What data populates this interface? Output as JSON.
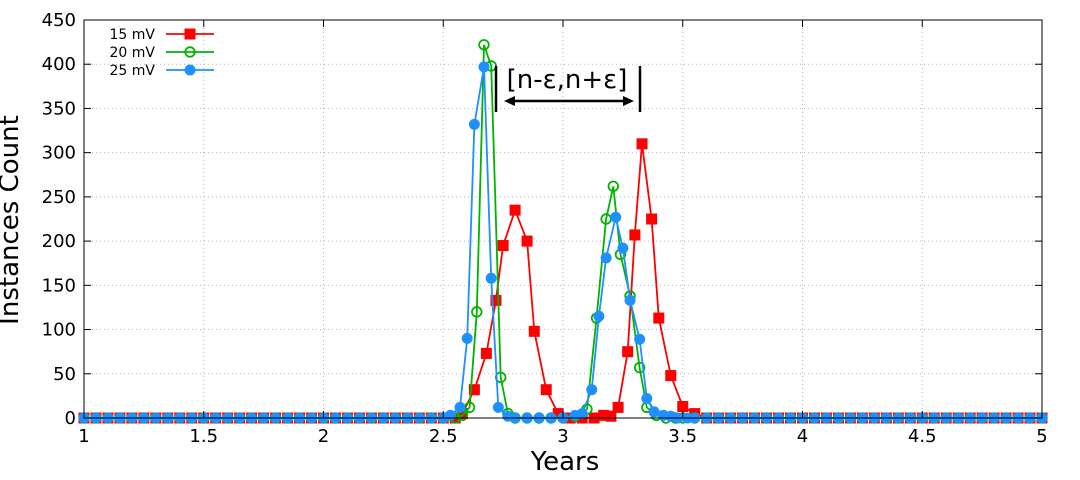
{
  "chart_data": {
    "type": "line",
    "xlabel": "Years",
    "ylabel": "Instances Count",
    "xlim": [
      1,
      5
    ],
    "ylim": [
      0,
      450
    ],
    "x_ticks": [
      "1",
      "1.5",
      "2",
      "2.5",
      "3",
      "3.5",
      "4",
      "4.5",
      "5"
    ],
    "y_ticks": [
      "0",
      "50",
      "100",
      "150",
      "200",
      "250",
      "300",
      "350",
      "400",
      "450"
    ],
    "grid": true,
    "legend_position": "top-left",
    "annotation": "[n-ε,n+ε]",
    "annotation_span": [
      2.73,
      3.28
    ],
    "series": [
      {
        "name": "15 mV",
        "color": "#ff0000",
        "marker": "square-filled",
        "x": [
          1,
          1.05,
          1.1,
          1.15,
          1.2,
          1.25,
          1.3,
          1.35,
          1.4,
          1.45,
          1.5,
          1.55,
          1.6,
          1.65,
          1.7,
          1.75,
          1.8,
          1.85,
          1.9,
          1.95,
          2,
          2.05,
          2.1,
          2.15,
          2.2,
          2.25,
          2.3,
          2.35,
          2.4,
          2.45,
          2.5,
          2.55,
          2.58,
          2.63,
          2.68,
          2.72,
          2.75,
          2.8,
          2.85,
          2.88,
          2.93,
          2.98,
          3.03,
          3.08,
          3.13,
          3.17,
          3.2,
          3.23,
          3.27,
          3.3,
          3.33,
          3.37,
          3.4,
          3.45,
          3.5,
          3.55,
          3.6,
          3.65,
          3.7,
          3.75,
          3.8,
          3.85,
          3.9,
          3.95,
          4,
          4.05,
          4.1,
          4.15,
          4.2,
          4.25,
          4.3,
          4.35,
          4.4,
          4.45,
          4.5,
          4.55,
          4.6,
          4.65,
          4.7,
          4.75,
          4.8,
          4.85,
          4.9,
          4.95,
          5
        ],
        "y": [
          0,
          0,
          0,
          0,
          0,
          0,
          0,
          0,
          0,
          0,
          0,
          0,
          0,
          0,
          0,
          0,
          0,
          0,
          0,
          0,
          0,
          0,
          0,
          0,
          0,
          0,
          0,
          0,
          0,
          0,
          0,
          0,
          5,
          32,
          73,
          133,
          195,
          235,
          200,
          98,
          32,
          5,
          0,
          0,
          0,
          3,
          2,
          12,
          75,
          207,
          310,
          225,
          113,
          48,
          13,
          5,
          0,
          0,
          0,
          0,
          0,
          0,
          0,
          0,
          0,
          0,
          0,
          0,
          0,
          0,
          0,
          0,
          0,
          0,
          0,
          0,
          0,
          0,
          0,
          0,
          0,
          0,
          0,
          0,
          0
        ]
      },
      {
        "name": "20 mV",
        "color": "#00b400",
        "marker": "circle-open",
        "x": [
          1,
          1.05,
          1.1,
          1.15,
          1.2,
          1.25,
          1.3,
          1.35,
          1.4,
          1.45,
          1.5,
          1.55,
          1.6,
          1.65,
          1.7,
          1.75,
          1.8,
          1.85,
          1.9,
          1.95,
          2,
          2.05,
          2.1,
          2.15,
          2.2,
          2.25,
          2.3,
          2.35,
          2.4,
          2.45,
          2.5,
          2.55,
          2.58,
          2.61,
          2.64,
          2.67,
          2.7,
          2.74,
          2.77,
          2.8,
          2.85,
          2.9,
          2.95,
          3,
          3.05,
          3.1,
          3.14,
          3.18,
          3.21,
          3.24,
          3.28,
          3.32,
          3.35,
          3.39,
          3.43,
          3.47,
          3.5,
          3.55,
          3.6,
          3.65,
          3.7,
          3.75,
          3.8,
          3.85,
          3.9,
          3.95,
          4,
          4.05,
          4.1,
          4.15,
          4.2,
          4.25,
          4.3,
          4.35,
          4.4,
          4.45,
          4.5,
          4.55,
          4.6,
          4.65,
          4.7,
          4.75,
          4.8,
          4.85,
          4.9,
          4.95,
          5
        ],
        "y": [
          0,
          0,
          0,
          0,
          0,
          0,
          0,
          0,
          0,
          0,
          0,
          0,
          0,
          0,
          0,
          0,
          0,
          0,
          0,
          0,
          0,
          0,
          0,
          0,
          0,
          0,
          0,
          0,
          0,
          0,
          0,
          0,
          3,
          12,
          120,
          422,
          398,
          46,
          5,
          0,
          0,
          0,
          0,
          0,
          2,
          10,
          113,
          225,
          262,
          185,
          138,
          57,
          12,
          3,
          0,
          0,
          0,
          0,
          0,
          0,
          0,
          0,
          0,
          0,
          0,
          0,
          0,
          0,
          0,
          0,
          0,
          0,
          0,
          0,
          0,
          0,
          0,
          0,
          0,
          0,
          0,
          0,
          0,
          0,
          0,
          0,
          0
        ]
      },
      {
        "name": "25 mV",
        "color": "#1e90ff",
        "marker": "circle-filled",
        "x": [
          1,
          1.05,
          1.1,
          1.15,
          1.2,
          1.25,
          1.3,
          1.35,
          1.4,
          1.45,
          1.5,
          1.55,
          1.6,
          1.65,
          1.7,
          1.75,
          1.8,
          1.85,
          1.9,
          1.95,
          2,
          2.05,
          2.1,
          2.15,
          2.2,
          2.25,
          2.3,
          2.35,
          2.4,
          2.45,
          2.5,
          2.53,
          2.57,
          2.6,
          2.63,
          2.67,
          2.7,
          2.73,
          2.77,
          2.8,
          2.85,
          2.9,
          2.95,
          3,
          3.05,
          3.08,
          3.12,
          3.15,
          3.18,
          3.22,
          3.25,
          3.28,
          3.32,
          3.35,
          3.38,
          3.42,
          3.45,
          3.48,
          3.52,
          3.55,
          3.6,
          3.65,
          3.7,
          3.75,
          3.8,
          3.85,
          3.9,
          3.95,
          4,
          4.05,
          4.1,
          4.15,
          4.2,
          4.25,
          4.3,
          4.35,
          4.4,
          4.45,
          4.5,
          4.55,
          4.6,
          4.65,
          4.7,
          4.75,
          4.8,
          4.85,
          4.9,
          4.95,
          5
        ],
        "y": [
          0,
          0,
          0,
          0,
          0,
          0,
          0,
          0,
          0,
          0,
          0,
          0,
          0,
          0,
          0,
          0,
          0,
          0,
          0,
          0,
          0,
          0,
          0,
          0,
          0,
          0,
          0,
          0,
          0,
          0,
          0,
          3,
          12,
          90,
          332,
          397,
          158,
          12,
          2,
          0,
          0,
          0,
          0,
          0,
          3,
          5,
          32,
          115,
          181,
          227,
          192,
          133,
          89,
          22,
          7,
          3,
          2,
          0,
          0,
          0,
          0,
          0,
          0,
          0,
          0,
          0,
          0,
          0,
          0,
          0,
          0,
          0,
          0,
          0,
          0,
          0,
          0,
          0,
          0,
          0,
          0,
          0,
          0,
          0,
          0,
          0,
          0,
          0,
          0
        ]
      }
    ]
  }
}
